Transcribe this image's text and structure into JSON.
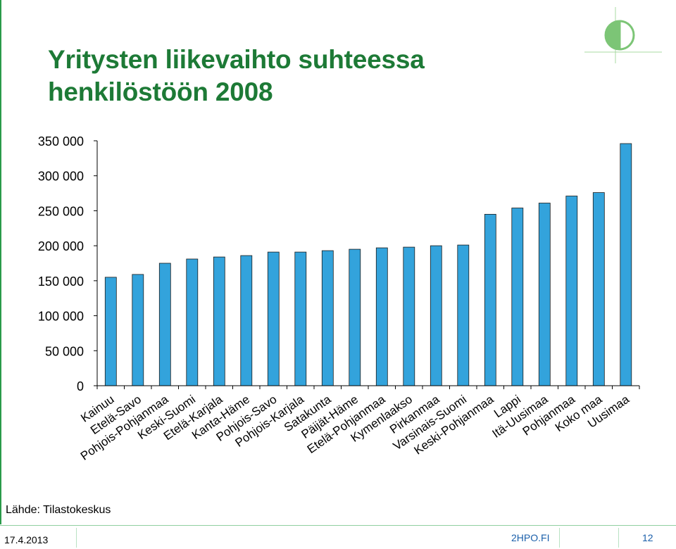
{
  "slide": {
    "title_line1": "Yritysten liikevaihto suhteessa",
    "title_line2": "henkilöstöön 2008",
    "source": "Lähde: Tilastokeskus",
    "date": "17.4.2013",
    "site": "2HPO.FI",
    "page": "12"
  },
  "colors": {
    "bar": "#33a3dc",
    "bar_stroke": "#1b1b1b",
    "title": "#1d7a36",
    "logo": "#7cc576"
  },
  "chart_data": {
    "type": "bar",
    "categories": [
      "Kainuu",
      "Etelä-Savo",
      "Pohjois-Pohjanmaa",
      "Keski-Suomi",
      "Etelä-Karjala",
      "Kanta-Häme",
      "Pohjois-Savo",
      "Pohjois-Karjala",
      "Satakunta",
      "Päijät-Häme",
      "Etelä-Pohjanmaa",
      "Kymenlaakso",
      "Pirkanmaa",
      "Varsinais-Suomi",
      "Keski-Pohjanmaa",
      "Lappi",
      "Itä-Uusimaa",
      "Pohjanmaa",
      "Koko maa",
      "Uusimaa"
    ],
    "values": [
      155000,
      159000,
      175000,
      181000,
      184000,
      186000,
      191000,
      191000,
      193000,
      195000,
      197000,
      198000,
      200000,
      201000,
      245000,
      254000,
      261000,
      271000,
      276000,
      346000
    ],
    "ylim": [
      0,
      350000
    ],
    "yticks": [
      0,
      50000,
      100000,
      150000,
      200000,
      250000,
      300000,
      350000
    ],
    "ytick_labels": [
      "0",
      "50 000",
      "100 000",
      "150 000",
      "200 000",
      "250 000",
      "300 000",
      "350 000"
    ],
    "grid": false,
    "legend": "none"
  }
}
